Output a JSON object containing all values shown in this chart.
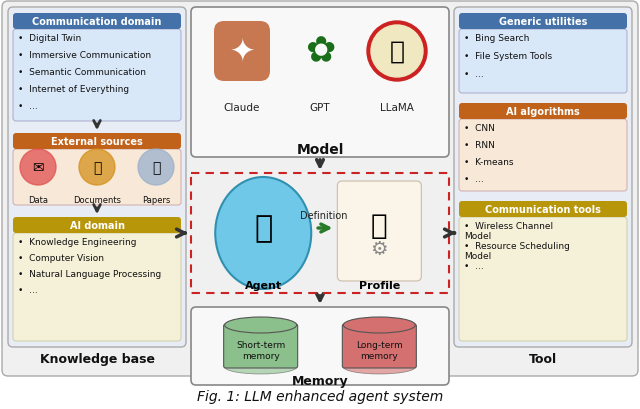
{
  "title": "Fig. 1: LLM enhanced agent system",
  "title_fontsize": 10,
  "bg_color": "#ffffff",
  "kb_title": "Knowledge base",
  "kb_comm_header": "Communication domain",
  "kb_comm_color": "#4472a8",
  "kb_comm_items": [
    "Digital Twin",
    "Immersive Communication",
    "Semantic Communication",
    "Internet of Everything",
    "..."
  ],
  "kb_ext_header": "External sources",
  "kb_ext_color": "#c0621a",
  "kb_ext_items": [
    "Data",
    "Documents",
    "Papers"
  ],
  "kb_ai_header": "AI domain",
  "kb_ai_color": "#b8960a",
  "kb_ai_items": [
    "Knowledge Engineering",
    "Computer Vision",
    "Natural Language Processing",
    "..."
  ],
  "model_title": "Model",
  "model_items": [
    "Claude",
    "GPT",
    "LLaMA"
  ],
  "agent_label": "Agent",
  "profile_label": "Profile",
  "definition_label": "Definition",
  "memory_title": "Memory",
  "memory_items": [
    "Short-term\nmemory",
    "Long-term\nmemory"
  ],
  "memory_colors": [
    "#8bbf8b",
    "#d47070"
  ],
  "tool_title": "Tool",
  "tool_generic_header": "Generic utilities",
  "tool_generic_color": "#4472a8",
  "tool_generic_items": [
    "Bing Search",
    "File System Tools",
    "..."
  ],
  "tool_ai_header": "AI algorithms",
  "tool_ai_color": "#c0621a",
  "tool_ai_items": [
    "CNN",
    "RNN",
    "K-means",
    "..."
  ],
  "tool_comm_header": "Communication tools",
  "tool_comm_color": "#b8960a",
  "tool_comm_items": [
    "Wireless Channel\nModel",
    "Resource Scheduling\nModel",
    "..."
  ],
  "outer_bg": "#f0f0f0",
  "left_panel_bg": "#e8edf5",
  "right_panel_bg": "#e8edf5",
  "center_panel_bg": "#f5f5f5",
  "comm_box_bg": "#d8e8f8",
  "ai_box_bg": "#f5f0d8",
  "ext_box_bg": "#f8e8d8",
  "gen_box_bg": "#d8e8f8",
  "ai_alg_box_bg": "#f8e8d8",
  "comm_tools_box_bg": "#f5f0d8"
}
